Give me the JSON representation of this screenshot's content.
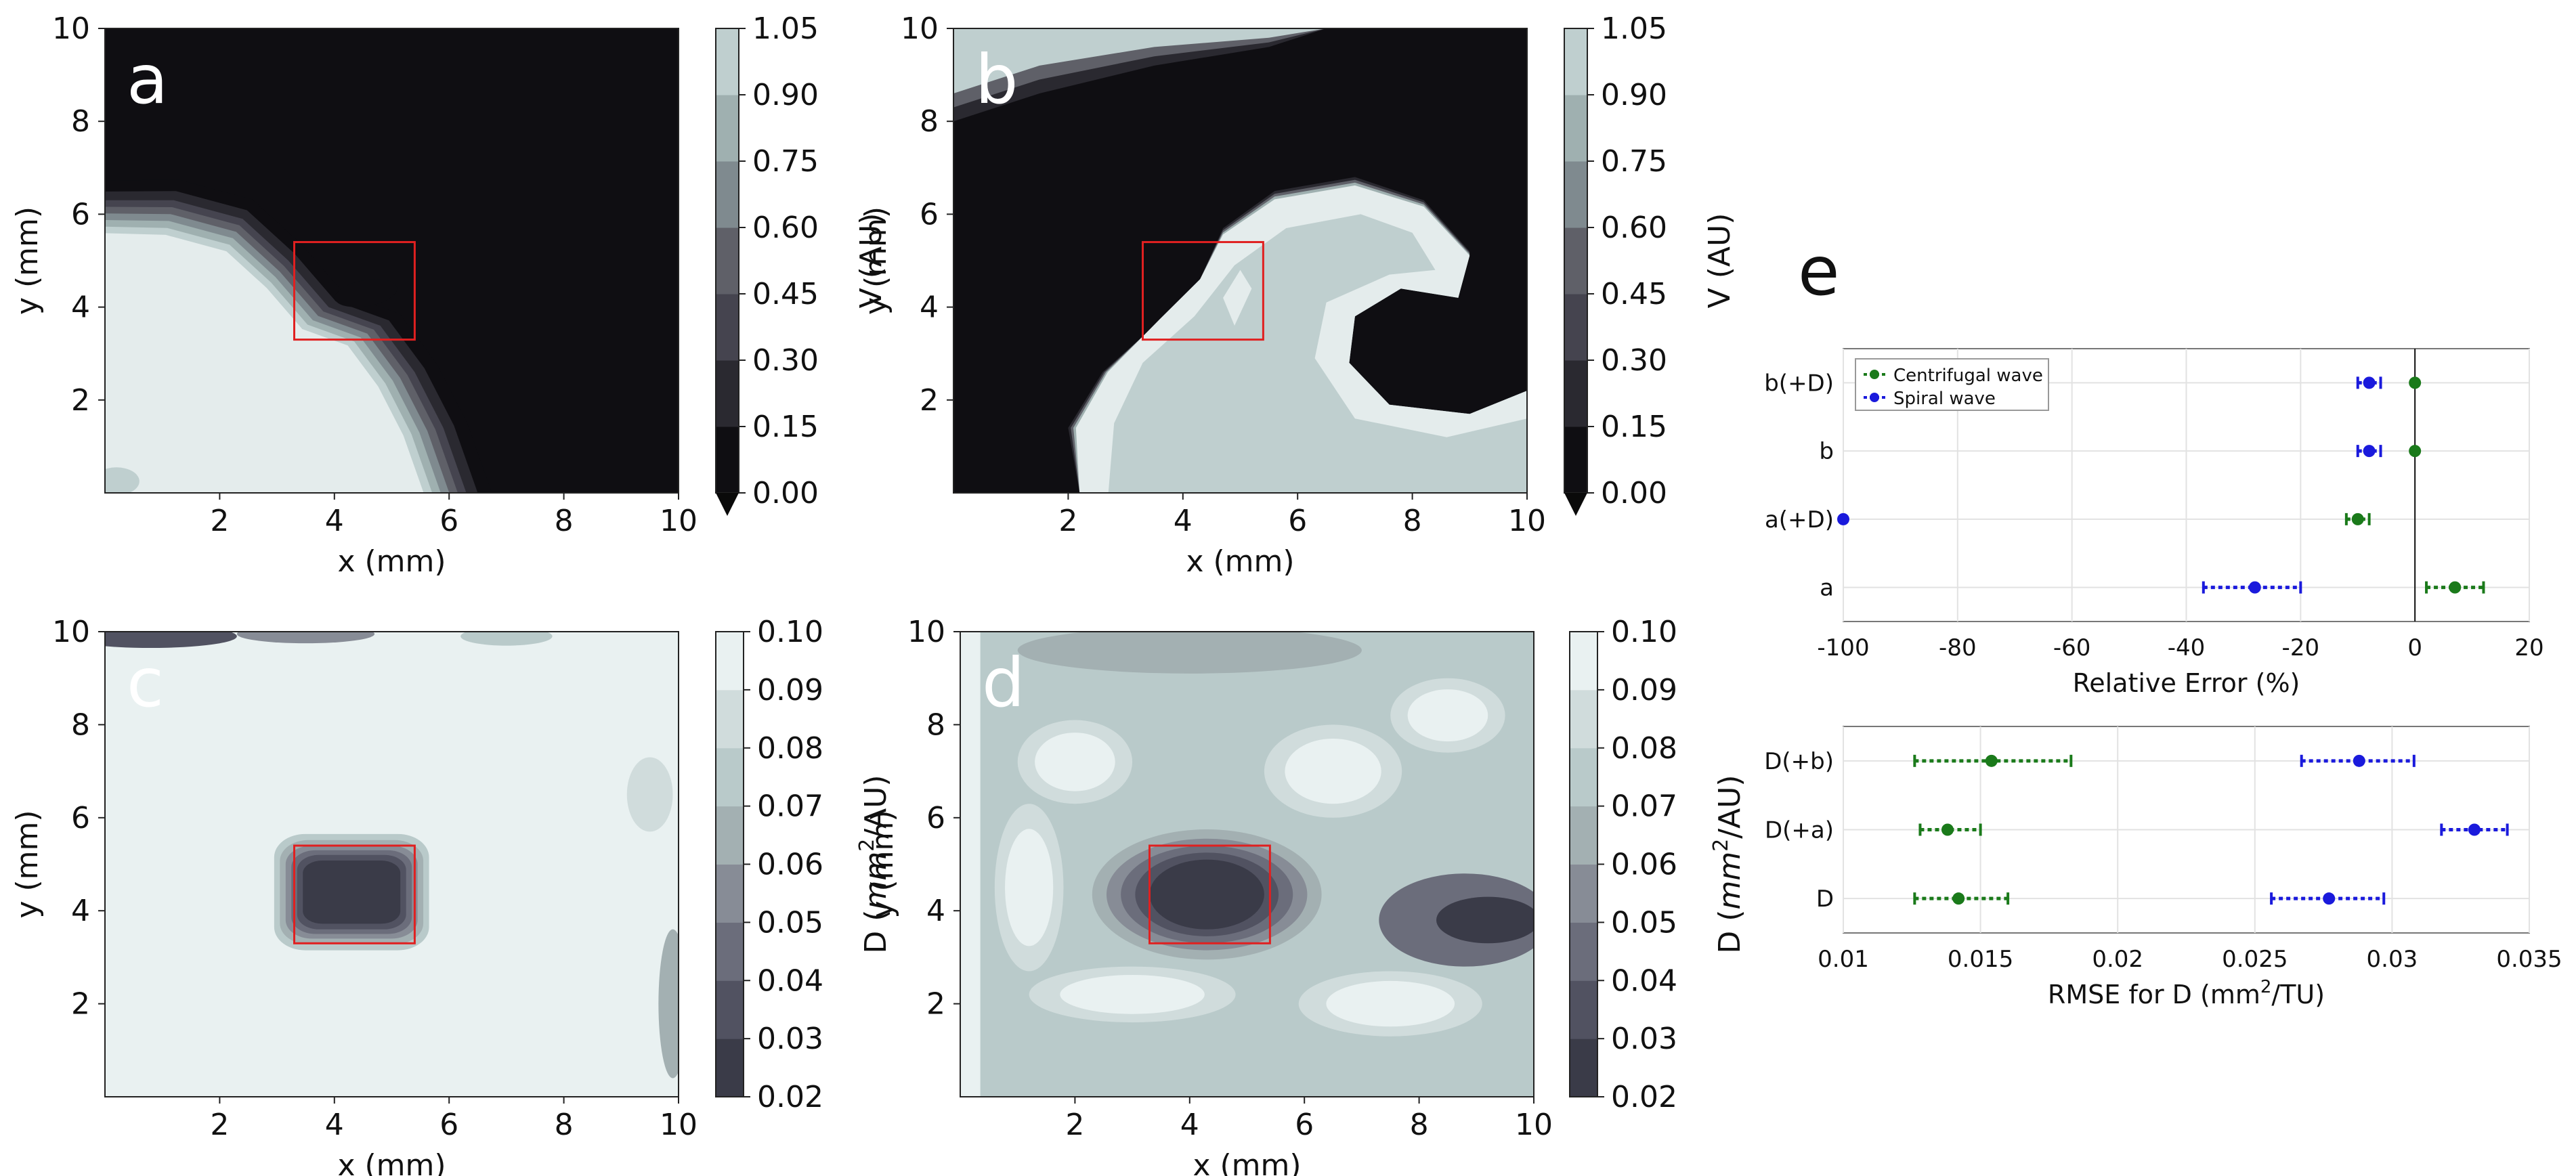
{
  "chart_data": [
    {
      "id": "a",
      "type": "heatmap",
      "panel_label": "a",
      "xlabel": "x (mm)",
      "ylabel": "y (mm)",
      "xlim": [
        0,
        10
      ],
      "ylim": [
        0,
        10
      ],
      "xticks": [
        "2",
        "4",
        "6",
        "8",
        "10"
      ],
      "yticks": [
        "2",
        "4",
        "6",
        "8",
        "10"
      ],
      "colorbar": {
        "label": "V (AU)",
        "levels": [
          "0.00",
          "0.15",
          "0.30",
          "0.45",
          "0.60",
          "0.75",
          "0.90",
          "1.05"
        ],
        "extend": "min"
      },
      "region_box": {
        "x": [
          3.3,
          5.4
        ],
        "y": [
          3.3,
          5.4
        ],
        "color": "#e02020"
      }
    },
    {
      "id": "b",
      "type": "heatmap",
      "panel_label": "b",
      "xlabel": "x (mm)",
      "ylabel": "y (mm)",
      "xlim": [
        0,
        10
      ],
      "ylim": [
        0,
        10
      ],
      "xticks": [
        "2",
        "4",
        "6",
        "8",
        "10"
      ],
      "yticks": [
        "2",
        "4",
        "6",
        "8",
        "10"
      ],
      "colorbar": {
        "label": "V (AU)",
        "levels": [
          "0.00",
          "0.15",
          "0.30",
          "0.45",
          "0.60",
          "0.75",
          "0.90",
          "1.05"
        ],
        "extend": "min"
      },
      "region_box": {
        "x": [
          3.3,
          5.4
        ],
        "y": [
          3.3,
          5.4
        ],
        "color": "#e02020"
      }
    },
    {
      "id": "c",
      "type": "heatmap",
      "panel_label": "c",
      "xlabel": "x (mm)",
      "ylabel": "y (mm)",
      "xlim": [
        0,
        10
      ],
      "ylim": [
        0,
        10
      ],
      "xticks": [
        "2",
        "4",
        "6",
        "8",
        "10"
      ],
      "yticks": [
        "2",
        "4",
        "6",
        "8",
        "10"
      ],
      "colorbar": {
        "label_prefix": "D (",
        "label_unit": "mm",
        "label_sup": "2",
        "label_suffix": "/AU)",
        "levels": [
          "0.02",
          "0.03",
          "0.04",
          "0.05",
          "0.06",
          "0.07",
          "0.08",
          "0.09",
          "0.10"
        ]
      },
      "region_box": {
        "x": [
          3.3,
          5.4
        ],
        "y": [
          3.3,
          5.4
        ],
        "color": "#e02020"
      }
    },
    {
      "id": "d",
      "type": "heatmap",
      "panel_label": "d",
      "xlabel": "x (mm)",
      "ylabel": "y (mm)",
      "xlim": [
        0,
        10
      ],
      "ylim": [
        0,
        10
      ],
      "xticks": [
        "2",
        "4",
        "6",
        "8",
        "10"
      ],
      "yticks": [
        "2",
        "4",
        "6",
        "8",
        "10"
      ],
      "colorbar": {
        "label_prefix": "D (",
        "label_unit": "mm",
        "label_sup": "2",
        "label_suffix": "/AU)",
        "levels": [
          "0.02",
          "0.03",
          "0.04",
          "0.05",
          "0.06",
          "0.07",
          "0.08",
          "0.09",
          "0.10"
        ]
      },
      "region_box": {
        "x": [
          3.3,
          5.4
        ],
        "y": [
          3.3,
          5.4
        ],
        "color": "#e02020"
      }
    },
    {
      "id": "e_top",
      "type": "scatter",
      "panel_label": "e",
      "xlabel": "Relative Error (%)",
      "xlim": [
        -100,
        20
      ],
      "xticks": [
        -100,
        -80,
        -60,
        -40,
        -20,
        0,
        20
      ],
      "categories": [
        "a",
        "a(+D)",
        "b",
        "b(+D)"
      ],
      "grid": true,
      "zero_line": 0,
      "legend": {
        "placement": "top-left",
        "entries": [
          "Centrifugal wave",
          "Spiral wave"
        ]
      },
      "series": [
        {
          "name": "Centrifugal wave",
          "color": "#1a7a1a",
          "values": [
            7,
            -10,
            0,
            0
          ],
          "err_low": [
            2,
            -12,
            0,
            0
          ],
          "err_high": [
            12,
            -8,
            0,
            0
          ]
        },
        {
          "name": "Spiral wave",
          "color": "#1a1adc",
          "values": [
            -28,
            -100,
            -8,
            -8
          ],
          "err_low": [
            -37,
            -100,
            -10,
            -10
          ],
          "err_high": [
            -20,
            -100,
            -6,
            -6
          ]
        }
      ]
    },
    {
      "id": "e_bottom",
      "type": "scatter",
      "xlabel_prefix": "RMSE for D (mm",
      "xlabel_sup": "2",
      "xlabel_suffix": "/TU)",
      "xlim": [
        0.01,
        0.035
      ],
      "xticks": [
        0.01,
        0.015,
        0.02,
        0.025,
        0.03,
        0.035
      ],
      "xtick_labels": [
        "0.01",
        "0.015",
        "0.02",
        "0.025",
        "0.03",
        "0.035"
      ],
      "categories": [
        "D",
        "D(+a)",
        "D(+b)"
      ],
      "grid": true,
      "series": [
        {
          "name": "Centrifugal wave",
          "color": "#1a7a1a",
          "values": [
            0.0142,
            0.0138,
            0.0154
          ],
          "err_low": [
            0.0126,
            0.0128,
            0.0126
          ],
          "err_high": [
            0.016,
            0.015,
            0.0183
          ]
        },
        {
          "name": "Spiral wave",
          "color": "#1a1adc",
          "values": [
            0.0277,
            0.033,
            0.0288
          ],
          "err_low": [
            0.0256,
            0.0318,
            0.0267
          ],
          "err_high": [
            0.0297,
            0.0342,
            0.0308
          ]
        }
      ]
    }
  ]
}
